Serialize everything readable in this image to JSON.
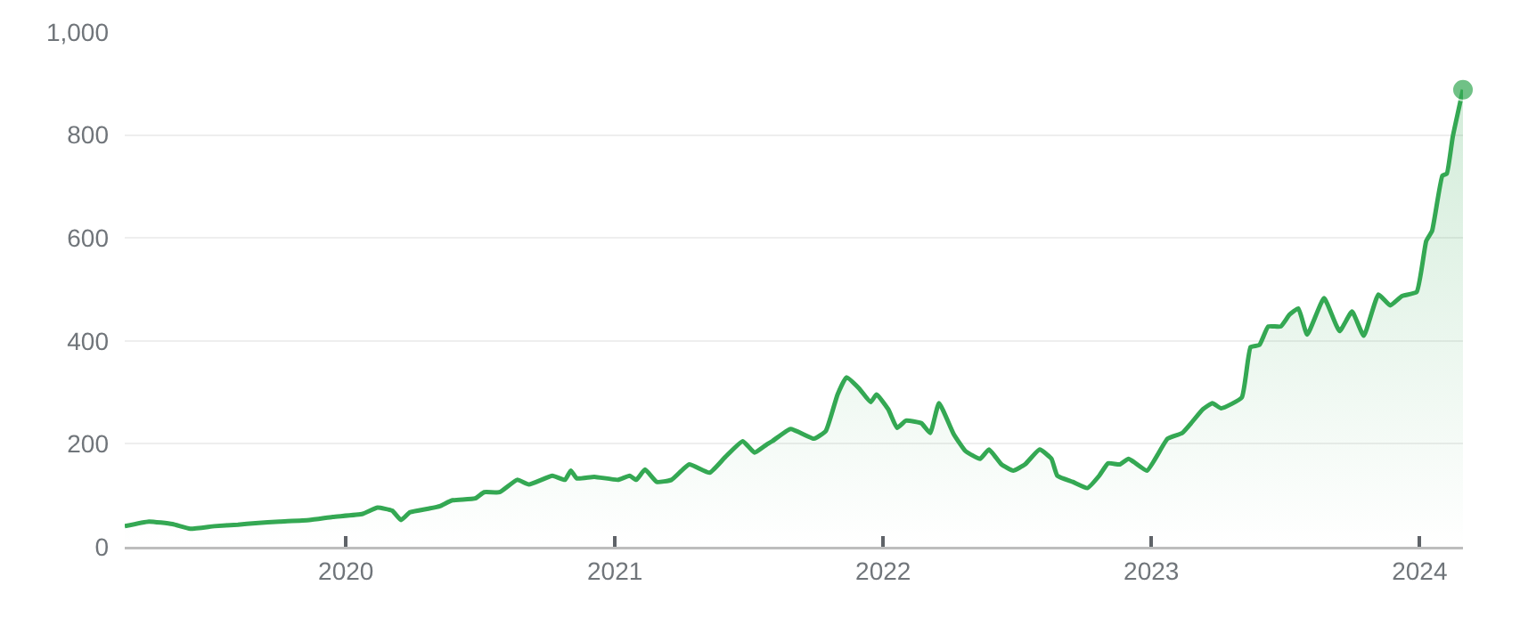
{
  "chart_data": {
    "type": "area",
    "grid": "y",
    "legend": false,
    "xlim": [
      "2019-03-06",
      "2024-02-29"
    ],
    "xticks": [
      {
        "value": "2020-01-01",
        "label": "2020"
      },
      {
        "value": "2021-01-01",
        "label": "2021"
      },
      {
        "value": "2022-01-01",
        "label": "2022"
      },
      {
        "value": "2023-01-01",
        "label": "2023"
      },
      {
        "value": "2024-01-01",
        "label": "2024"
      }
    ],
    "ylim": [
      0,
      1000
    ],
    "yticks": [
      0,
      200,
      400,
      600,
      800,
      {
        "value": 1000,
        "label": "1,000"
      }
    ],
    "x": [
      "2019-03-06",
      "2019-04-08",
      "2019-05-10",
      "2019-06-03",
      "2019-07-06",
      "2019-08-07",
      "2019-08-31",
      "2019-10-03",
      "2019-11-12",
      "2019-12-14",
      "2020-01-24",
      "2020-02-13",
      "2020-03-04",
      "2020-03-16",
      "2020-03-28",
      "2020-04-22",
      "2020-05-08",
      "2020-05-24",
      "2020-06-25",
      "2020-07-07",
      "2020-07-28",
      "2020-08-21",
      "2020-09-06",
      "2020-10-08",
      "2020-10-25",
      "2020-11-02",
      "2020-11-10",
      "2020-12-04",
      "2021-01-05",
      "2021-01-21",
      "2021-01-30",
      "2021-02-11",
      "2021-02-27",
      "2021-03-19",
      "2021-04-12",
      "2021-05-10",
      "2021-05-31",
      "2021-06-24",
      "2021-07-10",
      "2021-07-26",
      "2021-08-03",
      "2021-08-28",
      "2021-09-29",
      "2021-10-15",
      "2021-10-31",
      "2021-11-12",
      "2021-11-29",
      "2021-12-15",
      "2021-12-23",
      "2022-01-08",
      "2022-01-20",
      "2022-02-01",
      "2022-02-22",
      "2022-03-06",
      "2022-03-18",
      "2022-04-07",
      "2022-04-23",
      "2022-05-13",
      "2022-05-25",
      "2022-06-11",
      "2022-06-27",
      "2022-07-13",
      "2022-08-02",
      "2022-08-18",
      "2022-08-26",
      "2022-09-16",
      "2022-10-06",
      "2022-10-22",
      "2022-11-03",
      "2022-11-19",
      "2022-12-01",
      "2022-12-26",
      "2023-01-23",
      "2023-02-12",
      "2023-02-24",
      "2023-03-12",
      "2023-03-25",
      "2023-04-06",
      "2023-05-04",
      "2023-05-16",
      "2023-05-28",
      "2023-06-09",
      "2023-06-26",
      "2023-07-08",
      "2023-07-20",
      "2023-08-01",
      "2023-08-24",
      "2023-09-14",
      "2023-10-01",
      "2023-10-17",
      "2023-11-06",
      "2023-11-22",
      "2023-12-08",
      "2023-12-28",
      "2024-01-10",
      "2024-01-18",
      "2024-02-01",
      "2024-02-07",
      "2024-02-15",
      "2024-02-29"
    ],
    "series": [
      {
        "color": "#34a853",
        "values": [
          40,
          49,
          44,
          35,
          40,
          43,
          46,
          49,
          52,
          58,
          64,
          76,
          70,
          52,
          67,
          74,
          79,
          90,
          94,
          106,
          106,
          130,
          121,
          138,
          130,
          148,
          133,
          136,
          130,
          138,
          130,
          150,
          126,
          130,
          160,
          144,
          174,
          205,
          183,
          198,
          205,
          229,
          210,
          225,
          296,
          329,
          308,
          281,
          296,
          267,
          231,
          245,
          240,
          221,
          279,
          219,
          186,
          171,
          189,
          160,
          148,
          160,
          189,
          171,
          138,
          126,
          114,
          138,
          162,
          160,
          171,
          148,
          210,
          221,
          240,
          267,
          279,
          269,
          290,
          388,
          392,
          428,
          428,
          451,
          463,
          412,
          483,
          419,
          457,
          410,
          490,
          469,
          487,
          495,
          594,
          614,
          721,
          725,
          796,
          888
        ]
      }
    ]
  }
}
